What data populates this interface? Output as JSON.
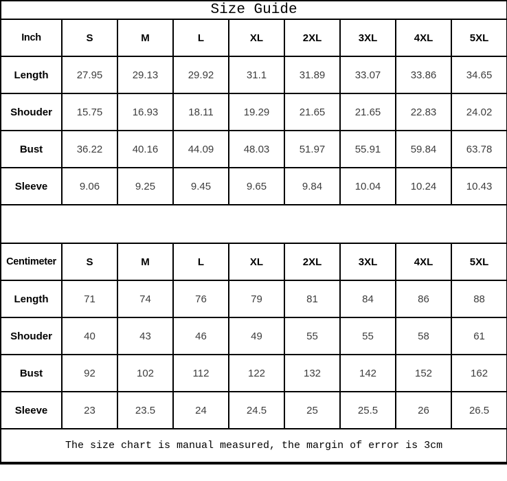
{
  "title": "Size Guide",
  "footer_note": "The size chart is manual measured, the margin of error is 3cm",
  "colors": {
    "border": "#000000",
    "background": "#ffffff",
    "label_text": "#000000",
    "value_text": "#3d3d3d"
  },
  "chart_data": [
    {
      "type": "table",
      "unit_label": "Inch",
      "columns": [
        "S",
        "M",
        "L",
        "XL",
        "2XL",
        "3XL",
        "4XL",
        "5XL"
      ],
      "rows": [
        {
          "label": "Length",
          "values": [
            27.95,
            29.13,
            29.92,
            31.1,
            31.89,
            33.07,
            33.86,
            34.65
          ]
        },
        {
          "label": "Shouder",
          "values": [
            15.75,
            16.93,
            18.11,
            19.29,
            21.65,
            21.65,
            22.83,
            24.02
          ]
        },
        {
          "label": "Bust",
          "values": [
            36.22,
            40.16,
            44.09,
            48.03,
            51.97,
            55.91,
            59.84,
            63.78
          ]
        },
        {
          "label": "Sleeve",
          "values": [
            9.06,
            9.25,
            9.45,
            9.65,
            9.84,
            10.04,
            10.24,
            10.43
          ]
        }
      ]
    },
    {
      "type": "table",
      "unit_label": "Centimeter",
      "columns": [
        "S",
        "M",
        "L",
        "XL",
        "2XL",
        "3XL",
        "4XL",
        "5XL"
      ],
      "rows": [
        {
          "label": "Length",
          "values": [
            71,
            74,
            76,
            79,
            81,
            84,
            86,
            88
          ]
        },
        {
          "label": "Shouder",
          "values": [
            40,
            43,
            46,
            49,
            55,
            55,
            58,
            61
          ]
        },
        {
          "label": "Bust",
          "values": [
            92,
            102,
            112,
            122,
            132,
            142,
            152,
            162
          ]
        },
        {
          "label": "Sleeve",
          "values": [
            23,
            23.5,
            24,
            24.5,
            25,
            25.5,
            26,
            26.5
          ]
        }
      ]
    }
  ]
}
